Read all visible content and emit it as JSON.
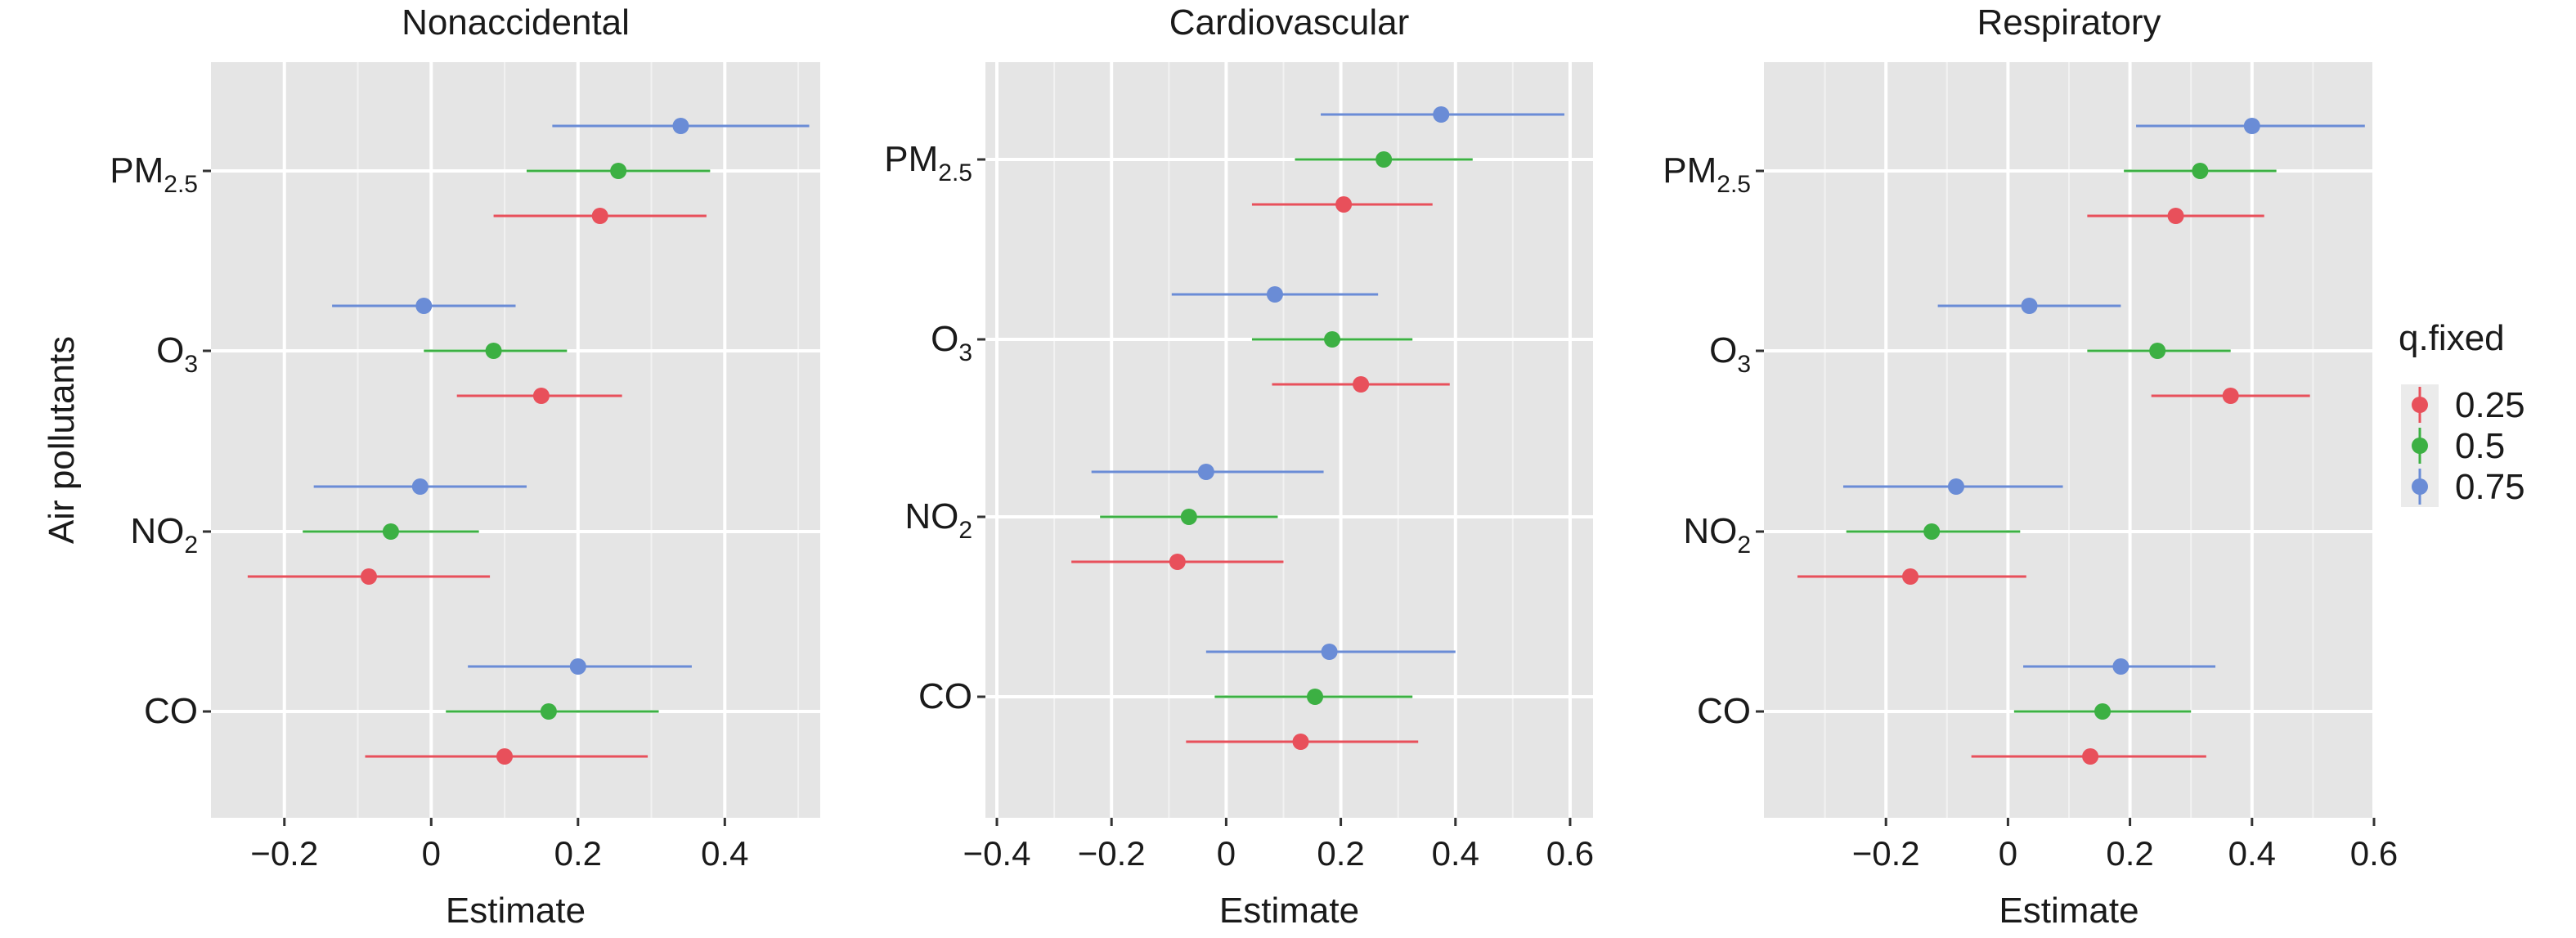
{
  "figure": {
    "ylabel": "Air pollutants",
    "xlabel": "Estimate",
    "legend": {
      "title": "q.fixed",
      "position": "right",
      "entries": [
        {
          "label": "0.25",
          "color": "#E8505B"
        },
        {
          "label": "0.5",
          "color": "#3CB043"
        },
        {
          "label": "0.75",
          "color": "#6A8CD6"
        }
      ]
    },
    "categories": [
      {
        "base": "PM",
        "sub": "2.5"
      },
      {
        "base": "O",
        "sub": "3"
      },
      {
        "base": "NO",
        "sub": "2"
      },
      {
        "base": "CO",
        "sub": ""
      }
    ]
  },
  "chart_data": [
    {
      "type": "scatter",
      "title": "Nonaccidental",
      "xlabel": "Estimate",
      "ylabel": "Air pollutants",
      "xlim": [
        -0.3,
        0.53
      ],
      "xticks": [
        -0.2,
        0,
        0.2,
        0.4
      ],
      "xtick_labels": [
        "−0.2",
        "0",
        "0.2",
        "0.4"
      ],
      "categories": [
        "PM2.5",
        "O3",
        "NO2",
        "CO"
      ],
      "series": [
        {
          "name": "0.25",
          "color": "#E8505B",
          "values": [
            0.23,
            0.15,
            -0.085,
            0.1
          ],
          "lower": [
            0.085,
            0.035,
            -0.25,
            -0.09
          ],
          "upper": [
            0.375,
            0.26,
            0.08,
            0.295
          ]
        },
        {
          "name": "0.5",
          "color": "#3CB043",
          "values": [
            0.255,
            0.085,
            -0.055,
            0.16
          ],
          "lower": [
            0.13,
            -0.01,
            -0.175,
            0.02
          ],
          "upper": [
            0.38,
            0.185,
            0.065,
            0.31
          ]
        },
        {
          "name": "0.75",
          "color": "#6A8CD6",
          "values": [
            0.34,
            -0.01,
            -0.015,
            0.2
          ],
          "lower": [
            0.165,
            -0.135,
            -0.16,
            0.05
          ],
          "upper": [
            0.515,
            0.115,
            0.13,
            0.355
          ]
        }
      ],
      "grid": true
    },
    {
      "type": "scatter",
      "title": "Cardiovascular",
      "xlabel": "Estimate",
      "ylabel": "",
      "xlim": [
        -0.42,
        0.64
      ],
      "xticks": [
        -0.4,
        -0.2,
        0,
        0.2,
        0.4,
        0.6
      ],
      "xtick_labels": [
        "−0.4",
        "−0.2",
        "0",
        "0.2",
        "0.4",
        "0.6"
      ],
      "categories": [
        "PM2.5",
        "O3",
        "NO2",
        "CO"
      ],
      "series": [
        {
          "name": "0.25",
          "color": "#E8505B",
          "values": [
            0.205,
            0.235,
            -0.085,
            0.13
          ],
          "lower": [
            0.045,
            0.08,
            -0.27,
            -0.07
          ],
          "upper": [
            0.36,
            0.39,
            0.1,
            0.335
          ]
        },
        {
          "name": "0.5",
          "color": "#3CB043",
          "values": [
            0.275,
            0.185,
            -0.065,
            0.155
          ],
          "lower": [
            0.12,
            0.045,
            -0.22,
            -0.02
          ],
          "upper": [
            0.43,
            0.325,
            0.09,
            0.325
          ]
        },
        {
          "name": "0.75",
          "color": "#6A8CD6",
          "values": [
            0.375,
            0.085,
            -0.035,
            0.18
          ],
          "lower": [
            0.165,
            -0.095,
            -0.235,
            -0.035
          ],
          "upper": [
            0.59,
            0.265,
            0.17,
            0.4
          ]
        }
      ],
      "grid": true
    },
    {
      "type": "scatter",
      "title": "Respiratory",
      "xlabel": "Estimate",
      "ylabel": "",
      "xlim": [
        -0.4,
        0.6
      ],
      "xticks": [
        -0.2,
        0,
        0.2,
        0.4,
        0.6
      ],
      "xtick_labels": [
        "−0.2",
        "0",
        "0.2",
        "0.4",
        "0.6"
      ],
      "categories": [
        "PM2.5",
        "O3",
        "NO2",
        "CO"
      ],
      "series": [
        {
          "name": "0.25",
          "color": "#E8505B",
          "values": [
            0.275,
            0.365,
            -0.16,
            0.135
          ],
          "lower": [
            0.13,
            0.235,
            -0.345,
            -0.06
          ],
          "upper": [
            0.42,
            0.495,
            0.03,
            0.325
          ]
        },
        {
          "name": "0.5",
          "color": "#3CB043",
          "values": [
            0.315,
            0.245,
            -0.125,
            0.155
          ],
          "lower": [
            0.19,
            0.13,
            -0.265,
            0.01
          ],
          "upper": [
            0.44,
            0.365,
            0.02,
            0.3
          ]
        },
        {
          "name": "0.75",
          "color": "#6A8CD6",
          "values": [
            0.4,
            0.035,
            -0.085,
            0.185
          ],
          "lower": [
            0.21,
            -0.115,
            -0.27,
            0.025
          ],
          "upper": [
            0.585,
            0.185,
            0.09,
            0.34
          ]
        }
      ],
      "grid": true
    }
  ]
}
